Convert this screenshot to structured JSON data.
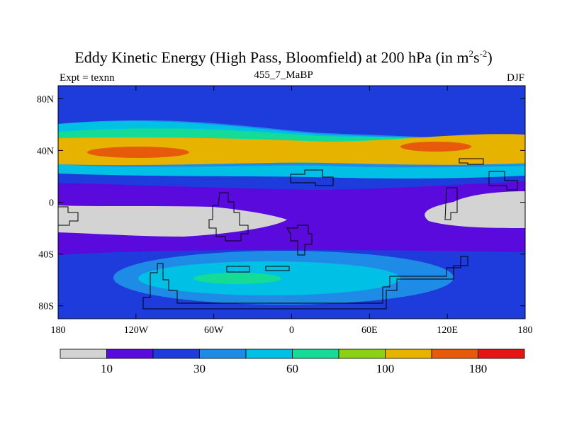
{
  "chart_data": {
    "type": "heatmap",
    "title_main": "Eddy Kinetic Energy (High Pass, Bloomfield) at 200 hPa (in m",
    "title_sup1": "2",
    "title_mid": "s",
    "title_sup2": "-2",
    "title_end": ")",
    "subtitle": "455_7_MaBP",
    "left_label": "Expt = texnn",
    "right_label": "DJF",
    "x_ticks": [
      "180",
      "120W",
      "60W",
      "0",
      "60E",
      "120E",
      "180"
    ],
    "y_ticks": [
      "80N",
      "40N",
      "0",
      "40S",
      "80S"
    ],
    "xlim": [
      -180,
      180
    ],
    "ylim": [
      -90,
      90
    ],
    "colorbar": {
      "colors": [
        "#d3d3d3",
        "#5a0adc",
        "#1e3cdc",
        "#1e8ce6",
        "#00c0e6",
        "#14dc96",
        "#8cd214",
        "#e6b400",
        "#e65a0a",
        "#e61414"
      ],
      "labels": [
        "10",
        "30",
        "60",
        "100",
        "180"
      ]
    }
  }
}
